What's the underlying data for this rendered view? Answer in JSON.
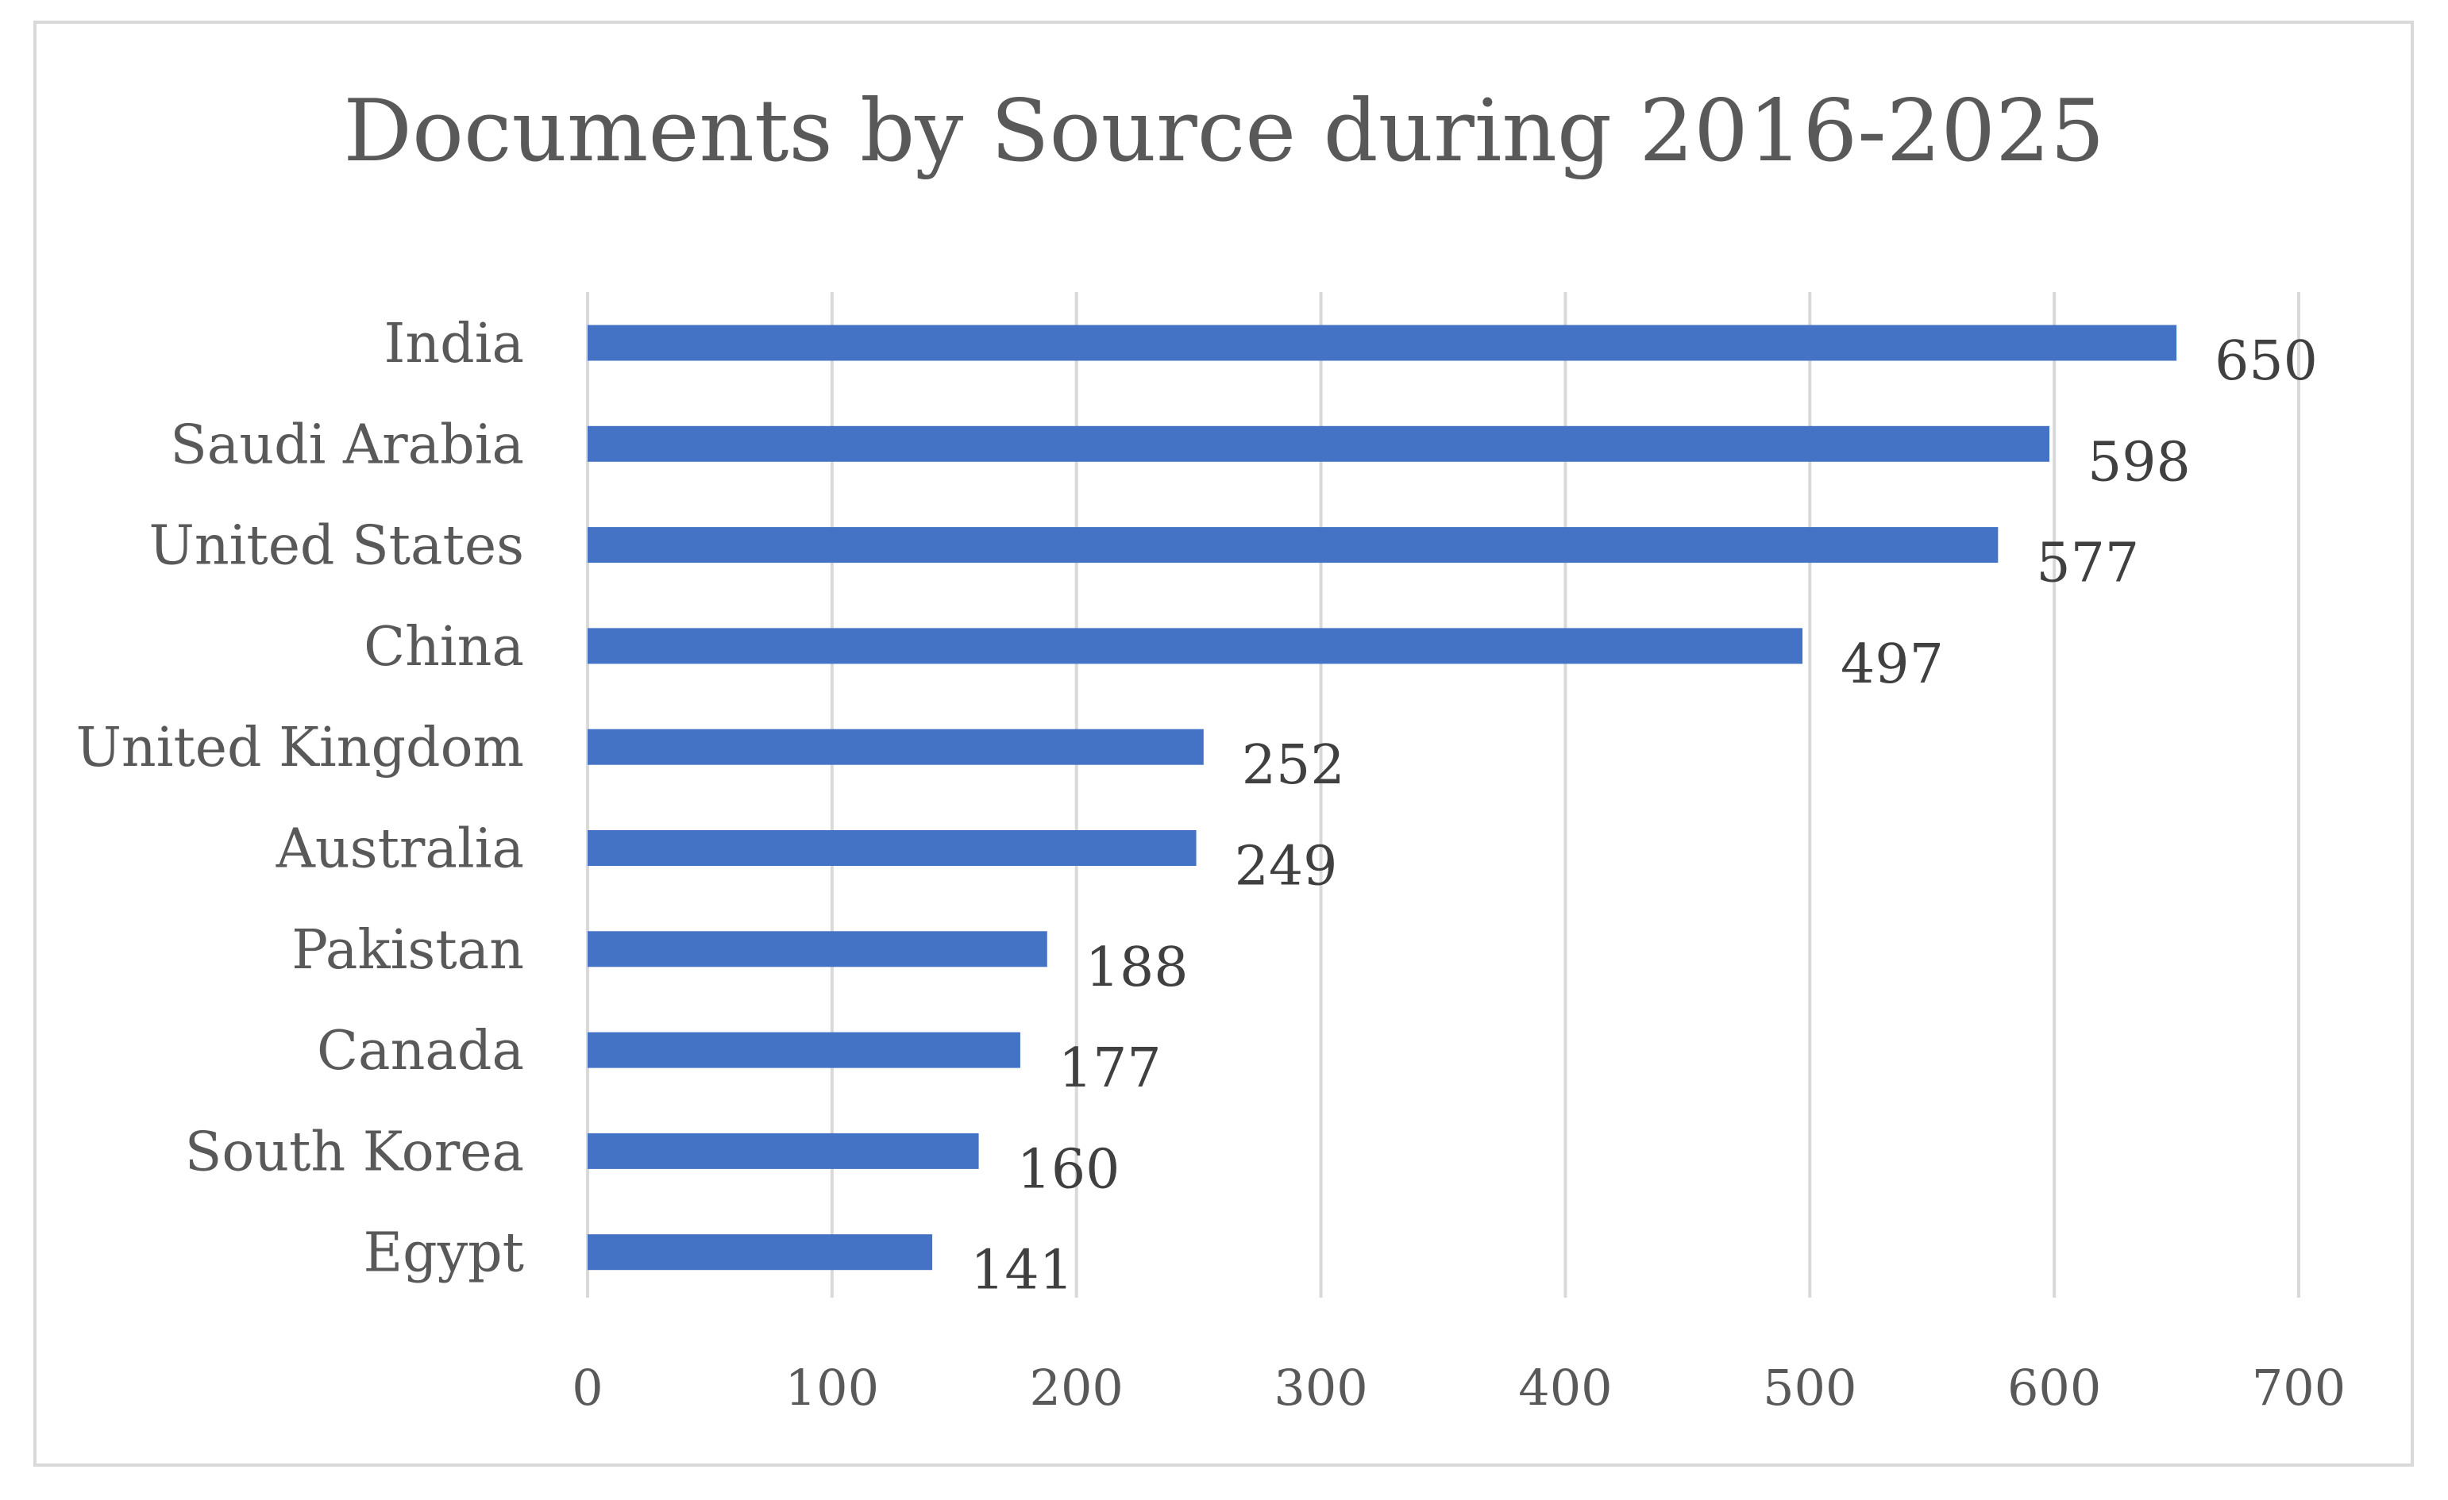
{
  "chart_data": {
    "type": "bar",
    "orientation": "horizontal",
    "title": "Documents by Source during 2016-2025",
    "categories": [
      "India",
      "Saudi Arabia",
      "United States",
      "China",
      "United Kingdom",
      "Australia",
      "Pakistan",
      "Canada",
      "South Korea",
      "Egypt"
    ],
    "values": [
      650,
      598,
      577,
      497,
      252,
      249,
      188,
      177,
      160,
      141
    ],
    "xlim": [
      0,
      700
    ],
    "x_ticks": [
      "0",
      "100",
      "200",
      "300",
      "400",
      "500",
      "600",
      "700"
    ],
    "grid": "vertical",
    "data_labels": true,
    "bar_color": "#4472c4",
    "legend": "none"
  }
}
